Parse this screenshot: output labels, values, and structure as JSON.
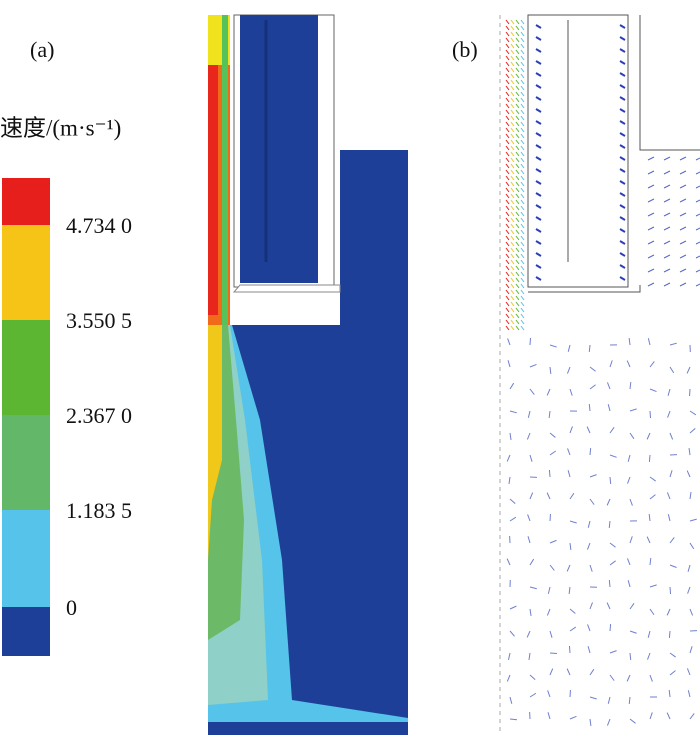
{
  "panels": [
    {
      "label": "(a)"
    },
    {
      "label": "(b)"
    }
  ],
  "legend": {
    "title": "速度/(m·s⁻¹)",
    "ticks": [
      "4.734 0",
      "3.550 5",
      "2.367 0",
      "1.183 5",
      "0"
    ],
    "colors": [
      "#e61f1c",
      "#f6c417",
      "#5cb631",
      "#62b868",
      "#56c3ea",
      "#1e3f98"
    ]
  }
}
